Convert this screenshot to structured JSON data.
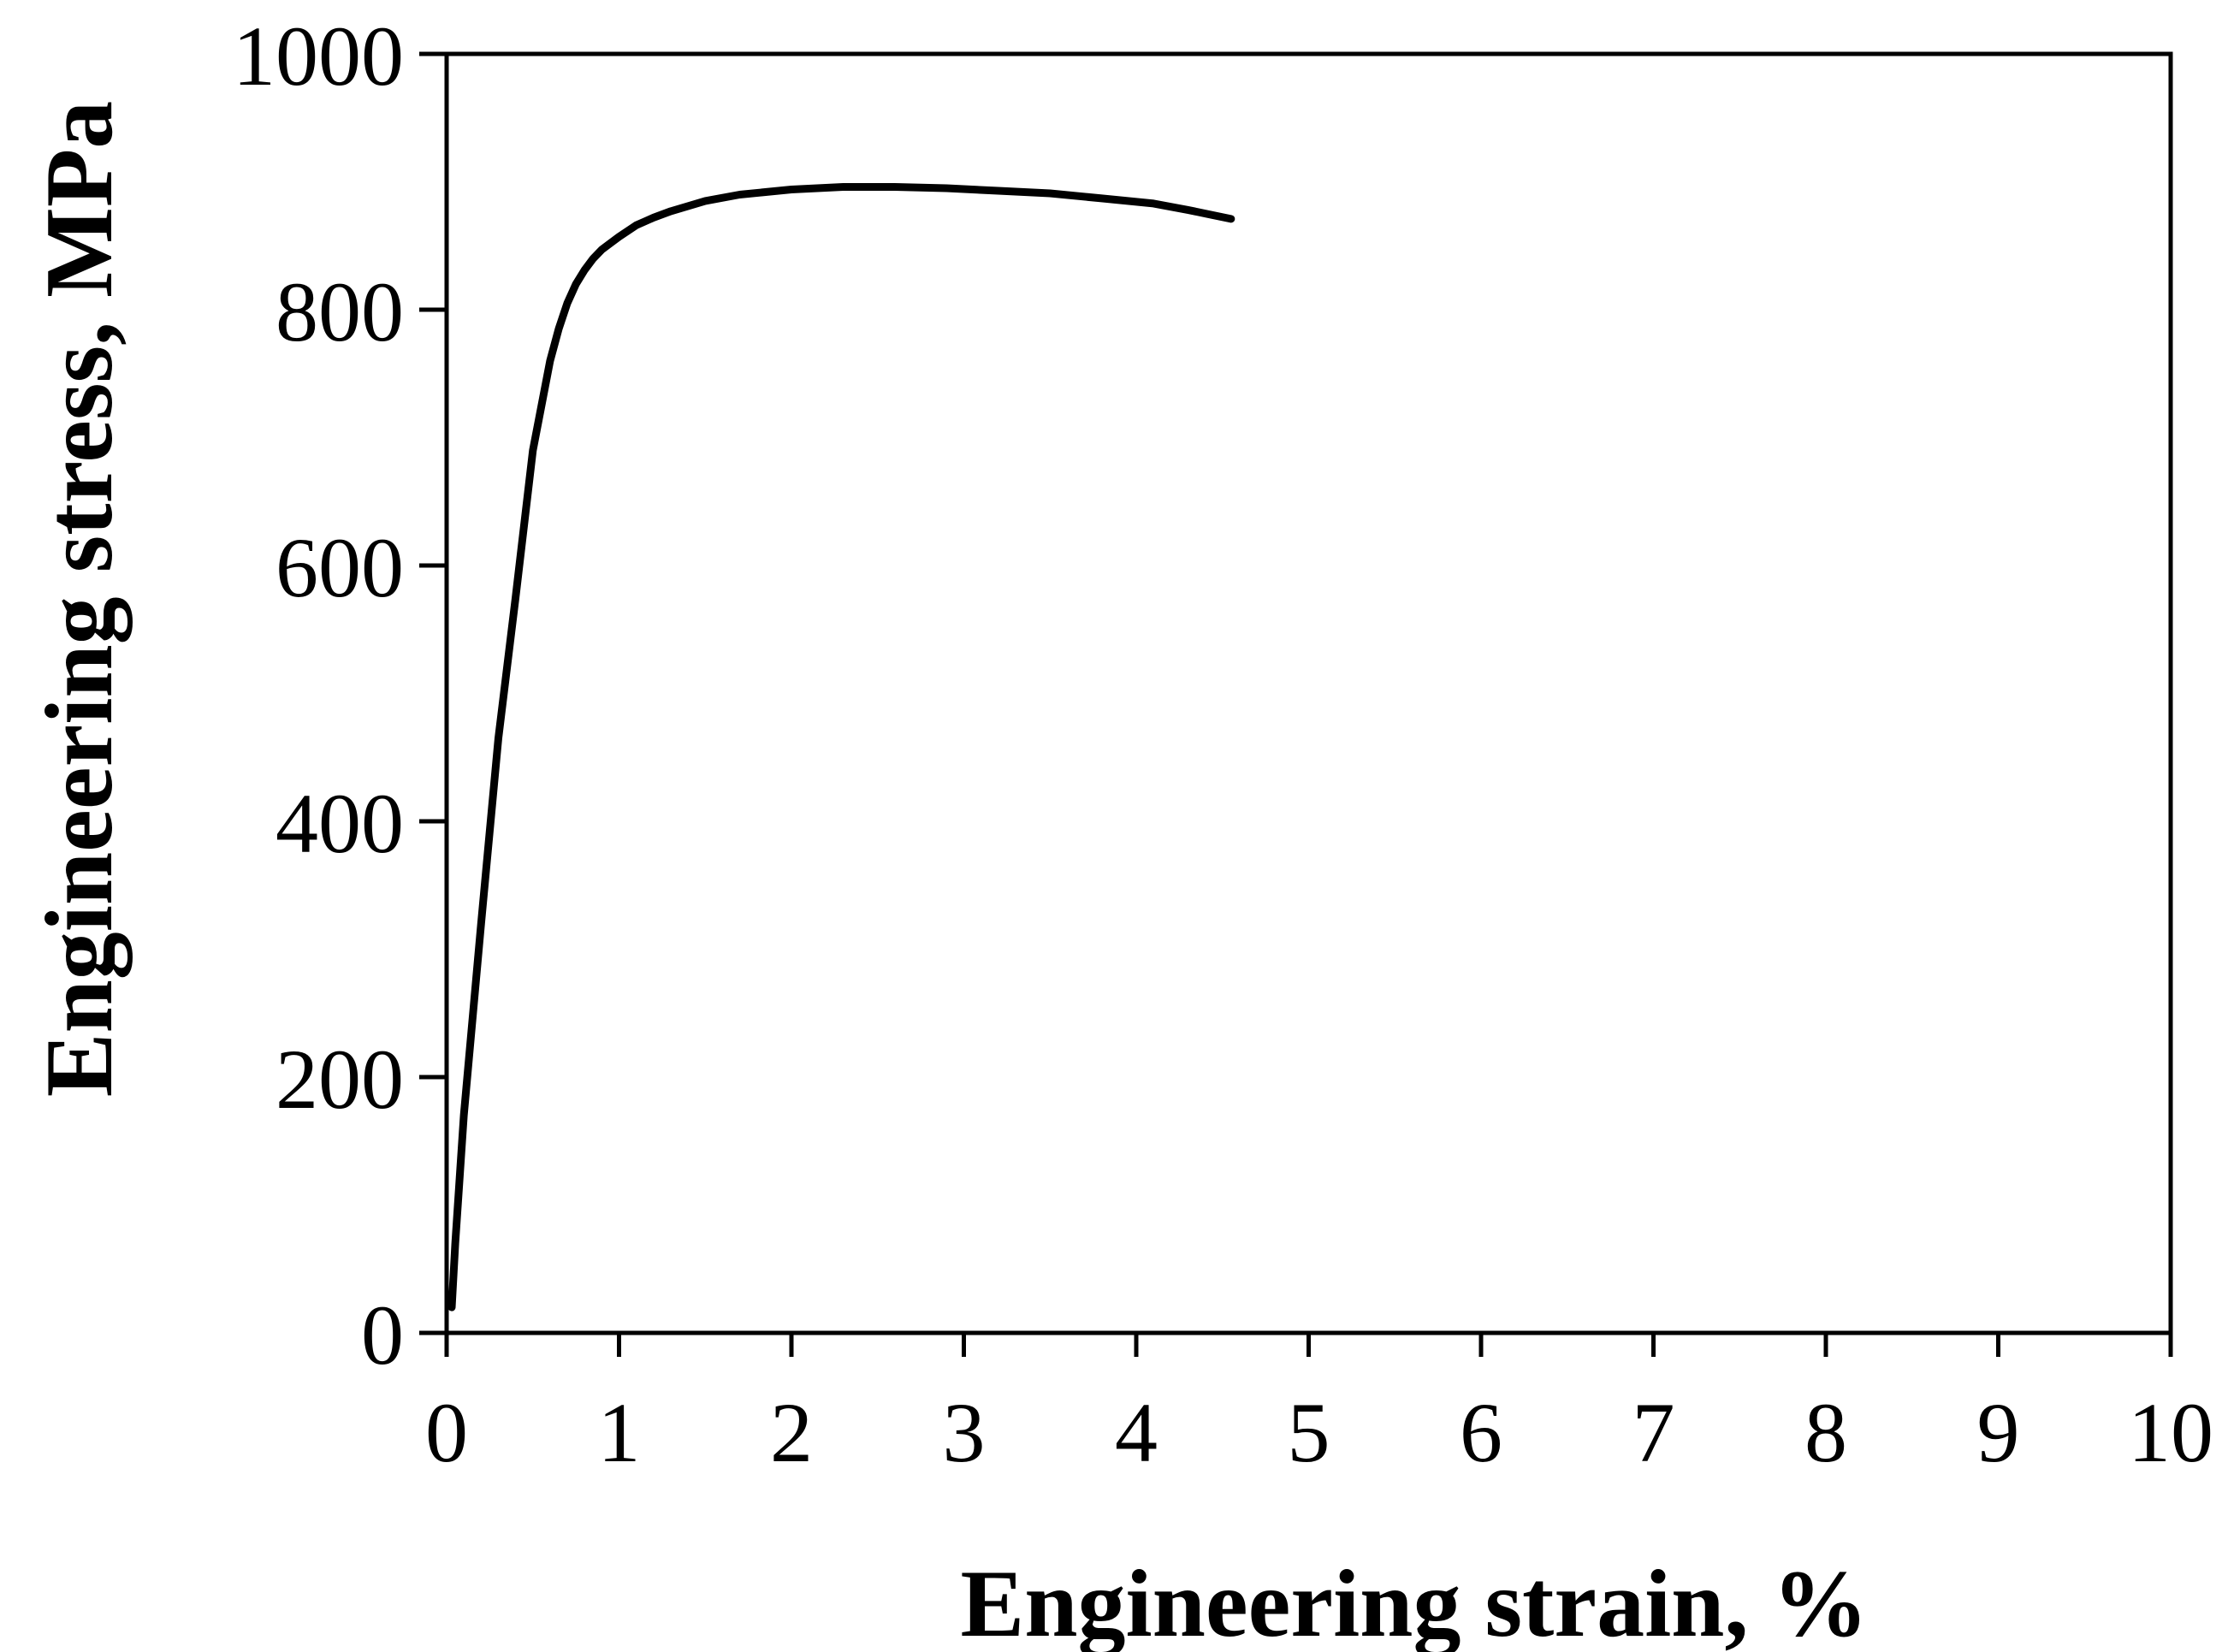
{
  "chart_data": {
    "type": "line",
    "title": "",
    "xlabel": "Engineering strain, %",
    "ylabel": "Engineering stress, MPa",
    "xlim": [
      0,
      10
    ],
    "ylim": [
      0,
      1000
    ],
    "x_ticks": [
      0,
      1,
      2,
      3,
      4,
      5,
      6,
      7,
      8,
      9,
      10
    ],
    "y_ticks": [
      0,
      200,
      400,
      600,
      800,
      1000
    ],
    "x_tick_labels": [
      "0",
      "1",
      "2",
      "3",
      "4",
      "5",
      "6",
      "7",
      "8",
      "9",
      "10"
    ],
    "y_tick_labels": [
      "0",
      "200",
      "400",
      "600",
      "800",
      "1000"
    ],
    "grid": false,
    "legend": "none",
    "series": [
      {
        "color": "#000000",
        "x": [
          0.03,
          0.05,
          0.1,
          0.2,
          0.3,
          0.4,
          0.5,
          0.6,
          0.65,
          0.7,
          0.75,
          0.8,
          0.85,
          0.9,
          0.95,
          1.0,
          1.1,
          1.2,
          1.3,
          1.5,
          1.7,
          2.0,
          2.3,
          2.6,
          2.9,
          3.2,
          3.5,
          3.8,
          4.1,
          4.3,
          4.55
        ],
        "y": [
          20,
          70,
          170,
          320,
          465,
          575,
          690,
          760,
          785,
          805,
          820,
          831,
          840,
          847,
          852,
          857,
          866,
          872,
          877,
          885,
          890,
          894,
          896,
          896,
          895,
          893,
          891,
          887,
          883,
          878,
          871
        ]
      }
    ]
  }
}
